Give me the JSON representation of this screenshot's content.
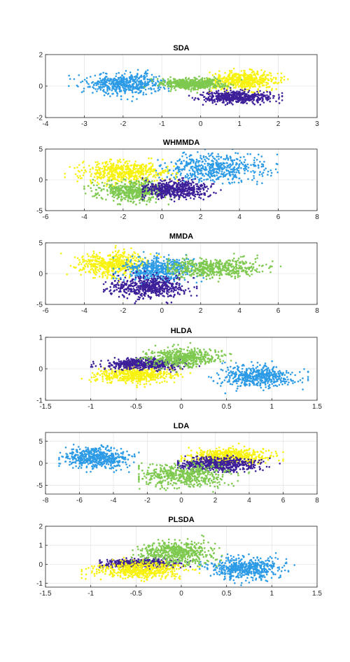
{
  "figure": {
    "background": "#ffffff"
  },
  "colors": {
    "dark_purple": "#3d1f99",
    "blue": "#2d9be6",
    "green": "#7ec94f",
    "yellow": "#f7f20e",
    "axis": "#262626",
    "grid": "#e6e6e6"
  },
  "chart_data": [
    {
      "type": "scatter",
      "title": "SDA",
      "xlim": [
        -4,
        3
      ],
      "ylim": [
        -2,
        2
      ],
      "xticks": [
        -4,
        -3,
        -2,
        -1,
        0,
        1,
        2,
        3
      ],
      "yticks": [
        -2,
        0,
        2
      ],
      "grid": true,
      "series": [
        {
          "color": "yellow",
          "cx": 1.1,
          "cy": 0.35,
          "sx": 0.45,
          "sy": 0.28,
          "xr": [
            -0.5,
            2.7
          ],
          "yr": [
            -0.4,
            1.2
          ]
        },
        {
          "color": "blue",
          "cx": -1.9,
          "cy": 0.15,
          "sx": 0.5,
          "sy": 0.33,
          "xr": [
            -3.4,
            -0.6
          ],
          "yr": [
            -1.0,
            1.4
          ]
        },
        {
          "color": "green",
          "cx": -0.2,
          "cy": 0.15,
          "sx": 0.4,
          "sy": 0.18,
          "xr": [
            -1.6,
            1.6
          ],
          "yr": [
            -0.5,
            0.7
          ]
        },
        {
          "color": "dark_purple",
          "cx": 0.9,
          "cy": -0.7,
          "sx": 0.45,
          "sy": 0.18,
          "xr": [
            -0.3,
            2.1
          ],
          "yr": [
            -1.2,
            -0.1
          ]
        }
      ]
    },
    {
      "type": "scatter",
      "title": "WHMMDA",
      "xlim": [
        -6,
        8
      ],
      "ylim": [
        -5,
        5
      ],
      "xticks": [
        -6,
        -4,
        -2,
        0,
        2,
        4,
        6,
        8
      ],
      "yticks": [
        -5,
        0,
        5
      ],
      "grid": true,
      "series": [
        {
          "color": "blue",
          "cx": 2.8,
          "cy": 1.8,
          "sx": 1.3,
          "sy": 1.2,
          "xr": [
            -0.5,
            7.5
          ],
          "yr": [
            -1.5,
            5.5
          ]
        },
        {
          "color": "yellow",
          "cx": -2.0,
          "cy": 1.2,
          "sx": 1.1,
          "sy": 0.85,
          "xr": [
            -5.0,
            1.5
          ],
          "yr": [
            -1.0,
            3.5
          ]
        },
        {
          "color": "green",
          "cx": -1.5,
          "cy": -1.8,
          "sx": 0.9,
          "sy": 0.85,
          "xr": [
            -4.0,
            1.5
          ],
          "yr": [
            -4.0,
            0.5
          ]
        },
        {
          "color": "dark_purple",
          "cx": 0.7,
          "cy": -1.6,
          "sx": 0.85,
          "sy": 0.75,
          "xr": [
            -1.0,
            3.2
          ],
          "yr": [
            -3.5,
            0.3
          ]
        }
      ]
    },
    {
      "type": "scatter",
      "title": "MMDA",
      "xlim": [
        -6,
        8
      ],
      "ylim": [
        -5,
        5
      ],
      "xticks": [
        -6,
        -4,
        -2,
        0,
        2,
        4,
        6,
        8
      ],
      "yticks": [
        -5,
        0,
        5
      ],
      "grid": true,
      "series": [
        {
          "color": "yellow",
          "cx": -2.6,
          "cy": 1.5,
          "sx": 0.9,
          "sy": 1.0,
          "xr": [
            -5.2,
            0.8
          ],
          "yr": [
            -1.5,
            4.8
          ]
        },
        {
          "color": "blue",
          "cx": -0.2,
          "cy": 0.6,
          "sx": 1.0,
          "sy": 1.0,
          "xr": [
            -2.5,
            2.5
          ],
          "yr": [
            -2.5,
            3.8
          ]
        },
        {
          "color": "dark_purple",
          "cx": -0.7,
          "cy": -2.2,
          "sx": 1.0,
          "sy": 0.9,
          "xr": [
            -3.0,
            1.8
          ],
          "yr": [
            -4.8,
            0.5
          ]
        },
        {
          "color": "green",
          "cx": 2.6,
          "cy": 0.9,
          "sx": 1.2,
          "sy": 0.8,
          "xr": [
            0.3,
            6.6
          ],
          "yr": [
            -1.3,
            3.3
          ]
        }
      ]
    },
    {
      "type": "scatter",
      "title": "HLDA",
      "xlim": [
        -1.5,
        1.5
      ],
      "ylim": [
        -1,
        1
      ],
      "xticks": [
        -1.5,
        -1,
        -0.5,
        0,
        0.5,
        1,
        1.5
      ],
      "yticks": [
        -1,
        0,
        1
      ],
      "grid": true,
      "series": [
        {
          "color": "blue",
          "cx": 0.85,
          "cy": -0.25,
          "sx": 0.2,
          "sy": 0.17,
          "xr": [
            0.3,
            1.4
          ],
          "yr": [
            -0.8,
            0.4
          ]
        },
        {
          "color": "yellow",
          "cx": -0.5,
          "cy": -0.2,
          "sx": 0.22,
          "sy": 0.12,
          "xr": [
            -1.1,
            0.1
          ],
          "yr": [
            -0.6,
            0.1
          ]
        },
        {
          "color": "dark_purple",
          "cx": -0.4,
          "cy": 0.15,
          "sx": 0.22,
          "sy": 0.09,
          "xr": [
            -1.1,
            0.2
          ],
          "yr": [
            -0.1,
            0.35
          ]
        },
        {
          "color": "green",
          "cx": 0.0,
          "cy": 0.35,
          "sx": 0.2,
          "sy": 0.14,
          "xr": [
            -0.6,
            0.55
          ],
          "yr": [
            -0.1,
            0.85
          ]
        }
      ]
    },
    {
      "type": "scatter",
      "title": "LDA",
      "xlim": [
        -8,
        8
      ],
      "ylim": [
        -7,
        7
      ],
      "xticks": [
        -8,
        -6,
        -4,
        -2,
        0,
        2,
        4,
        6,
        8
      ],
      "yticks": [
        -5,
        0,
        5
      ],
      "grid": true,
      "series": [
        {
          "color": "blue",
          "cx": -5.0,
          "cy": 1.2,
          "sx": 1.0,
          "sy": 1.2,
          "xr": [
            -7.2,
            -2.5
          ],
          "yr": [
            -2.0,
            5.5
          ]
        },
        {
          "color": "yellow",
          "cx": 2.8,
          "cy": 1.6,
          "sx": 1.2,
          "sy": 0.9,
          "xr": [
            0.0,
            6.0
          ],
          "yr": [
            -0.5,
            4.5
          ]
        },
        {
          "color": "dark_purple",
          "cx": 2.2,
          "cy": -0.3,
          "sx": 1.2,
          "sy": 0.8,
          "xr": [
            -0.2,
            5.8
          ],
          "yr": [
            -2.0,
            1.8
          ]
        },
        {
          "color": "green",
          "cx": 0.0,
          "cy": -2.8,
          "sx": 1.3,
          "sy": 1.3,
          "xr": [
            -2.5,
            4.0
          ],
          "yr": [
            -6.5,
            0.5
          ]
        }
      ]
    },
    {
      "type": "scatter",
      "title": "PLSDA",
      "xlim": [
        -1.5,
        1.5
      ],
      "ylim": [
        -1.2,
        2
      ],
      "xticks": [
        -1.5,
        -1,
        -0.5,
        0,
        0.5,
        1,
        1.5
      ],
      "yticks": [
        -1,
        0,
        1,
        2
      ],
      "grid": true,
      "series": [
        {
          "color": "blue",
          "cx": 0.7,
          "cy": -0.2,
          "sx": 0.2,
          "sy": 0.28,
          "xr": [
            0.2,
            1.25
          ],
          "yr": [
            -1.1,
            0.6
          ]
        },
        {
          "color": "dark_purple",
          "cx": -0.45,
          "cy": 0.05,
          "sx": 0.2,
          "sy": 0.12,
          "xr": [
            -0.9,
            0.1
          ],
          "yr": [
            -0.3,
            0.35
          ]
        },
        {
          "color": "yellow",
          "cx": -0.45,
          "cy": -0.3,
          "sx": 0.25,
          "sy": 0.22,
          "xr": [
            -1.1,
            0.2
          ],
          "yr": [
            -0.9,
            0.4
          ]
        },
        {
          "color": "green",
          "cx": -0.05,
          "cy": 0.6,
          "sx": 0.2,
          "sy": 0.3,
          "xr": [
            -0.55,
            0.45
          ],
          "yr": [
            -0.1,
            1.6
          ]
        }
      ]
    }
  ]
}
